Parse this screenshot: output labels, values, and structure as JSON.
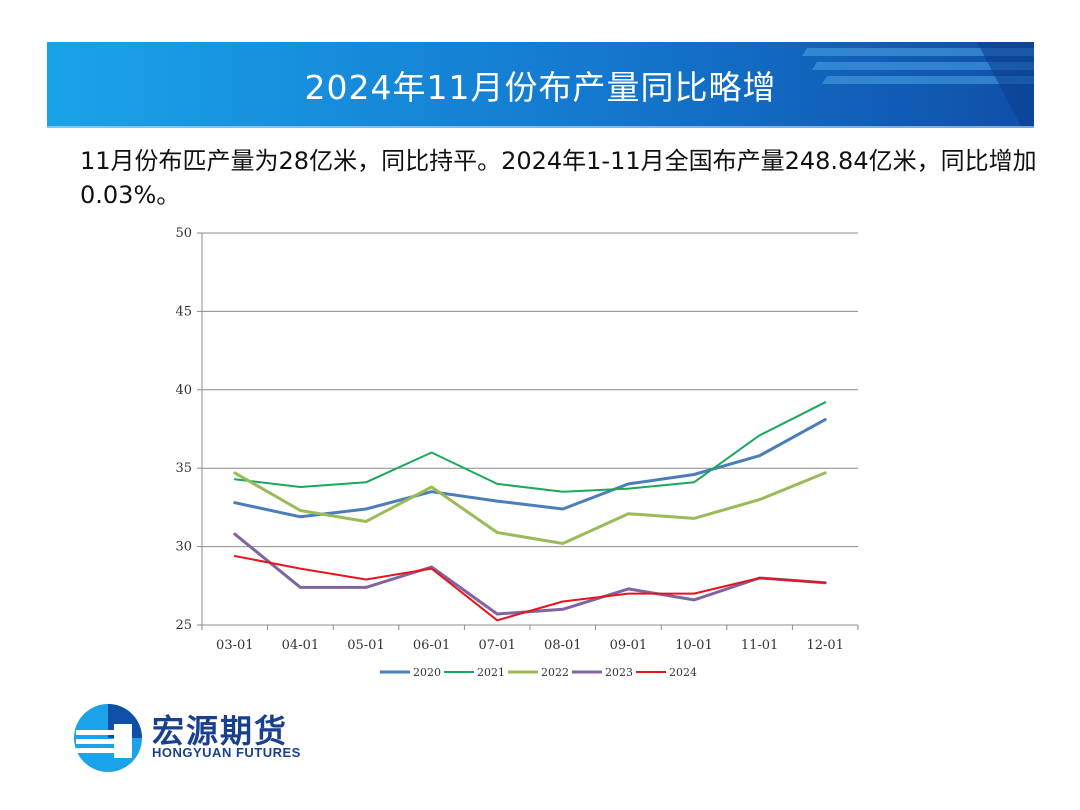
{
  "header": {
    "title": "2024年11月份布产量同比略增"
  },
  "intro": {
    "text": "11月份布匹产量为28亿米，同比持平。2024年1-11月全国布产量248.84亿米，同比增加0.03%。"
  },
  "logo": {
    "name_cn": "宏源期货",
    "name_en": "HONGYUAN FUTURES"
  },
  "chart_data": {
    "type": "line",
    "title": "",
    "xlabel": "",
    "ylabel": "",
    "categories": [
      "03-01",
      "04-01",
      "05-01",
      "06-01",
      "07-01",
      "08-01",
      "09-01",
      "10-01",
      "11-01",
      "12-01"
    ],
    "ylim": [
      25,
      50
    ],
    "yticks": [
      25,
      30,
      35,
      40,
      45,
      50
    ],
    "grid": true,
    "legend_position": "bottom",
    "series": [
      {
        "name": "2020",
        "color": "#4a7ebb",
        "values": [
          32.8,
          31.9,
          32.4,
          33.5,
          32.9,
          32.4,
          34.0,
          34.6,
          35.8,
          38.1
        ]
      },
      {
        "name": "2021",
        "color": "#1aa85a",
        "values": [
          34.3,
          33.8,
          34.1,
          36.0,
          34.0,
          33.5,
          33.7,
          34.1,
          37.1,
          39.2
        ]
      },
      {
        "name": "2022",
        "color": "#9bbb59",
        "values": [
          34.7,
          32.3,
          31.6,
          33.8,
          30.9,
          30.2,
          32.1,
          31.8,
          33.0,
          34.7
        ]
      },
      {
        "name": "2023",
        "color": "#8064a2",
        "values": [
          30.8,
          27.4,
          27.4,
          28.7,
          25.7,
          26.0,
          27.3,
          26.6,
          28.0,
          27.7
        ]
      },
      {
        "name": "2024",
        "color": "#e8141b",
        "values": [
          29.4,
          28.6,
          27.9,
          28.6,
          25.3,
          26.5,
          27.0,
          27.0,
          28.0,
          27.7
        ]
      }
    ]
  }
}
